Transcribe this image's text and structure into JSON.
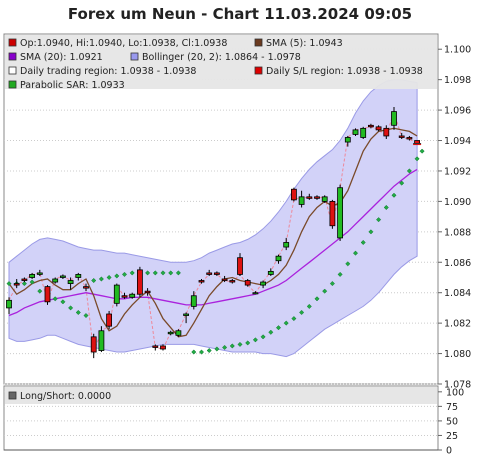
{
  "chart_data": {
    "type": "candlestick",
    "title": "Forex um Neun - Chart 11.03.2024 09:05",
    "main_panel": {
      "ylim": [
        1.078,
        1.101
      ],
      "yticks": [
        1.078,
        1.08,
        1.082,
        1.084,
        1.086,
        1.088,
        1.09,
        1.092,
        1.094,
        1.096,
        1.098,
        1.1
      ],
      "ytick_labels": [
        "1.078",
        "1.080",
        "1.082",
        "1.084",
        "1.086",
        "1.088",
        "1.090",
        "1.092",
        "1.094",
        "1.096",
        "1.098",
        "1.100"
      ],
      "grid": true,
      "legend_position": "top",
      "legend": [
        {
          "label": "Op:1.0940, Hi:1.0940, Lo:1.0938, Cl:1.0938",
          "color": "#cc0000"
        },
        {
          "label": "SMA (5): 1.0943",
          "color": "#6b3a1f"
        },
        {
          "label": "SMA (20): 1.0921",
          "color": "#8800cc"
        },
        {
          "label": "Bollinger (20, 2): 1.0864 - 1.0978",
          "color": "#9999ee"
        },
        {
          "label": "Daily trading region: 1.0938 - 1.0938",
          "color": "#ffffff"
        },
        {
          "label": "Daily S/L region: 1.0938 - 1.0938",
          "color": "#dd0000"
        },
        {
          "label": "Parabolic SAR: 1.0933",
          "color": "#22aa22"
        }
      ],
      "candles": [
        {
          "o": 1.083,
          "h": 1.0837,
          "l": 1.0826,
          "c": 1.0835
        },
        {
          "o": 1.0846,
          "h": 1.0849,
          "l": 1.0843,
          "c": 1.0845
        },
        {
          "o": 1.0849,
          "h": 1.085,
          "l": 1.0847,
          "c": 1.0848
        },
        {
          "o": 1.085,
          "h": 1.0853,
          "l": 1.0849,
          "c": 1.0852
        },
        {
          "o": 1.0852,
          "h": 1.0855,
          "l": 1.0851,
          "c": 1.0853
        },
        {
          "o": 1.0844,
          "h": 1.0845,
          "l": 1.0832,
          "c": 1.0834
        },
        {
          "o": 1.0847,
          "h": 1.085,
          "l": 1.0846,
          "c": 1.0849
        },
        {
          "o": 1.085,
          "h": 1.0852,
          "l": 1.0849,
          "c": 1.0851
        },
        {
          "o": 1.0846,
          "h": 1.085,
          "l": 1.0842,
          "c": 1.0848
        },
        {
          "o": 1.085,
          "h": 1.0853,
          "l": 1.0848,
          "c": 1.0852
        },
        {
          "o": 1.0844,
          "h": 1.0846,
          "l": 1.0841,
          "c": 1.0843
        },
        {
          "o": 1.0811,
          "h": 1.0813,
          "l": 1.0797,
          "c": 1.0801
        },
        {
          "o": 1.0802,
          "h": 1.0818,
          "l": 1.0801,
          "c": 1.0815
        },
        {
          "o": 1.0826,
          "h": 1.0828,
          "l": 1.0816,
          "c": 1.0818
        },
        {
          "o": 1.0833,
          "h": 1.0846,
          "l": 1.0831,
          "c": 1.0845
        },
        {
          "o": 1.0838,
          "h": 1.084,
          "l": 1.0836,
          "c": 1.0837
        },
        {
          "o": 1.0837,
          "h": 1.084,
          "l": 1.0836,
          "c": 1.0839
        },
        {
          "o": 1.0855,
          "h": 1.0857,
          "l": 1.0837,
          "c": 1.0839
        },
        {
          "o": 1.0841,
          "h": 1.0843,
          "l": 1.0838,
          "c": 1.084
        },
        {
          "o": 1.0805,
          "h": 1.0806,
          "l": 1.0802,
          "c": 1.0804
        },
        {
          "o": 1.0805,
          "h": 1.0806,
          "l": 1.0802,
          "c": 1.0803
        },
        {
          "o": 1.0813,
          "h": 1.0815,
          "l": 1.0812,
          "c": 1.0814
        },
        {
          "o": 1.0812,
          "h": 1.0816,
          "l": 1.0811,
          "c": 1.0815
        },
        {
          "o": 1.0825,
          "h": 1.0827,
          "l": 1.082,
          "c": 1.0826
        },
        {
          "o": 1.0831,
          "h": 1.0841,
          "l": 1.0829,
          "c": 1.0838
        },
        {
          "o": 1.0848,
          "h": 1.0849,
          "l": 1.0846,
          "c": 1.0847
        },
        {
          "o": 1.0853,
          "h": 1.0855,
          "l": 1.0851,
          "c": 1.0852
        },
        {
          "o": 1.0853,
          "h": 1.0854,
          "l": 1.0851,
          "c": 1.0852
        },
        {
          "o": 1.0849,
          "h": 1.0851,
          "l": 1.0847,
          "c": 1.0848
        },
        {
          "o": 1.0848,
          "h": 1.0849,
          "l": 1.0846,
          "c": 1.0847
        },
        {
          "o": 1.0863,
          "h": 1.0866,
          "l": 1.0851,
          "c": 1.0852
        },
        {
          "o": 1.0848,
          "h": 1.0849,
          "l": 1.0844,
          "c": 1.0845
        },
        {
          "o": 1.084,
          "h": 1.0841,
          "l": 1.0839,
          "c": 1.084
        },
        {
          "o": 1.0845,
          "h": 1.0848,
          "l": 1.0843,
          "c": 1.0847
        },
        {
          "o": 1.0852,
          "h": 1.0856,
          "l": 1.0851,
          "c": 1.0854
        },
        {
          "o": 1.0861,
          "h": 1.0865,
          "l": 1.0859,
          "c": 1.0864
        },
        {
          "o": 1.087,
          "h": 1.0876,
          "l": 1.0868,
          "c": 1.0873
        },
        {
          "o": 1.0908,
          "h": 1.0909,
          "l": 1.09,
          "c": 1.0901
        },
        {
          "o": 1.0898,
          "h": 1.0907,
          "l": 1.0896,
          "c": 1.0903
        },
        {
          "o": 1.0903,
          "h": 1.0905,
          "l": 1.0901,
          "c": 1.0902
        },
        {
          "o": 1.0903,
          "h": 1.0904,
          "l": 1.0901,
          "c": 1.0902
        },
        {
          "o": 1.09,
          "h": 1.0904,
          "l": 1.0899,
          "c": 1.0903
        },
        {
          "o": 1.09,
          "h": 1.0901,
          "l": 1.0882,
          "c": 1.0884
        },
        {
          "o": 1.0876,
          "h": 1.0911,
          "l": 1.0874,
          "c": 1.0909
        },
        {
          "o": 1.0939,
          "h": 1.0943,
          "l": 1.0936,
          "c": 1.0942
        },
        {
          "o": 1.0944,
          "h": 1.0948,
          "l": 1.0943,
          "c": 1.0947
        },
        {
          "o": 1.0942,
          "h": 1.0949,
          "l": 1.0941,
          "c": 1.0948
        },
        {
          "o": 1.095,
          "h": 1.0951,
          "l": 1.0948,
          "c": 1.0949
        },
        {
          "o": 1.0949,
          "h": 1.095,
          "l": 1.0946,
          "c": 1.0947
        },
        {
          "o": 1.0948,
          "h": 1.095,
          "l": 1.0941,
          "c": 1.0943
        },
        {
          "o": 1.095,
          "h": 1.0962,
          "l": 1.0947,
          "c": 1.0959
        },
        {
          "o": 1.0943,
          "h": 1.0945,
          "l": 1.0941,
          "c": 1.0942
        },
        {
          "o": 1.0942,
          "h": 1.0943,
          "l": 1.094,
          "c": 1.0941
        },
        {
          "o": 1.094,
          "h": 1.094,
          "l": 1.0938,
          "c": 1.0938
        }
      ],
      "sma5": [
        1.0846,
        1.0839,
        1.0842,
        1.0846,
        1.0848,
        1.0849,
        1.0845,
        1.0842,
        1.0842,
        1.0846,
        1.0849,
        1.0838,
        1.0823,
        1.0815,
        1.0818,
        1.0826,
        1.0832,
        1.0837,
        1.0841,
        1.0833,
        1.0823,
        1.0817,
        1.0811,
        1.0812,
        1.082,
        1.0829,
        1.0838,
        1.0844,
        1.0849,
        1.085,
        1.0848,
        1.0847,
        1.0846,
        1.0845,
        1.0848,
        1.0852,
        1.0858,
        1.0868,
        1.088,
        1.089,
        1.0896,
        1.09,
        1.0897,
        1.0899,
        1.0907,
        1.092,
        1.0933,
        1.0941,
        1.0946,
        1.0947,
        1.0948,
        1.0947,
        1.0946,
        1.0943
      ],
      "sma20": [
        1.0825,
        1.0827,
        1.083,
        1.0832,
        1.0834,
        1.0835,
        1.0836,
        1.0837,
        1.0838,
        1.0839,
        1.084,
        1.0839,
        1.0838,
        1.0837,
        1.0836,
        1.0836,
        1.0837,
        1.0837,
        1.0837,
        1.0836,
        1.0835,
        1.0834,
        1.0833,
        1.0832,
        1.0832,
        1.0832,
        1.0833,
        1.0834,
        1.0835,
        1.0836,
        1.0837,
        1.0838,
        1.0839,
        1.0841,
        1.0843,
        1.0845,
        1.0848,
        1.0852,
        1.0856,
        1.086,
        1.0864,
        1.0868,
        1.0872,
        1.0876,
        1.088,
        1.0885,
        1.089,
        1.0895,
        1.09,
        1.0905,
        1.091,
        1.0914,
        1.0918,
        1.0921
      ],
      "bb_upper": [
        1.086,
        1.0864,
        1.0868,
        1.0872,
        1.0875,
        1.0876,
        1.0875,
        1.0874,
        1.0872,
        1.087,
        1.0869,
        1.0868,
        1.0868,
        1.0867,
        1.0866,
        1.0866,
        1.0865,
        1.0864,
        1.0863,
        1.0862,
        1.0861,
        1.086,
        1.086,
        1.086,
        1.0861,
        1.0863,
        1.0866,
        1.0868,
        1.087,
        1.0872,
        1.0873,
        1.0875,
        1.0878,
        1.0882,
        1.0887,
        1.0893,
        1.09,
        1.0908,
        1.0915,
        1.0921,
        1.0926,
        1.093,
        1.0934,
        1.094,
        1.0948,
        1.0958,
        1.0966,
        1.0972,
        1.0976,
        1.0979,
        1.098,
        1.098,
        1.0979,
        1.0978
      ],
      "bb_lower": [
        1.081,
        1.0808,
        1.0808,
        1.0809,
        1.081,
        1.0812,
        1.0812,
        1.081,
        1.0808,
        1.0806,
        1.0805,
        1.0804,
        1.0803,
        1.0802,
        1.0801,
        1.0801,
        1.0802,
        1.0803,
        1.0804,
        1.0805,
        1.0806,
        1.0806,
        1.0806,
        1.0806,
        1.0806,
        1.0805,
        1.0804,
        1.0803,
        1.0802,
        1.0801,
        1.0801,
        1.0801,
        1.0801,
        1.08,
        1.08,
        1.0799,
        1.0798,
        1.08,
        1.0804,
        1.0808,
        1.0812,
        1.0816,
        1.0819,
        1.0822,
        1.0825,
        1.0828,
        1.0831,
        1.0835,
        1.084,
        1.0846,
        1.0852,
        1.0857,
        1.0861,
        1.0864
      ],
      "sar": [
        1.0846,
        1.0846,
        1.0846,
        1.0847,
        1.0841,
        1.0838,
        1.0836,
        1.0834,
        1.083,
        1.0827,
        1.0825,
        1.0848,
        1.0849,
        1.085,
        1.0851,
        1.0852,
        1.0853,
        1.0853,
        1.0853,
        1.0853,
        1.0853,
        1.0853,
        1.0853,
        null,
        1.0801,
        1.0801,
        1.0802,
        1.0803,
        1.0804,
        1.0805,
        1.0806,
        1.0807,
        1.0809,
        1.0811,
        1.0814,
        1.0817,
        1.082,
        1.0823,
        1.0827,
        1.0831,
        1.0836,
        1.0841,
        1.0846,
        1.0852,
        1.0859,
        1.0866,
        1.0873,
        1.088,
        1.0888,
        1.0896,
        1.0904,
        1.0912,
        1.092,
        1.0928
      ],
      "sar_after_last": 1.0933,
      "daily_trading_region": [
        1.0938,
        1.0938
      ],
      "daily_sl_region": [
        1.0938,
        1.0938
      ]
    },
    "sub_panel": {
      "legend": [
        {
          "label": "Long/Short: 0.0000",
          "color": "#666666"
        }
      ],
      "ylim": [
        0,
        110
      ],
      "yticks": [
        0,
        25,
        50,
        75,
        100
      ],
      "ytick_labels": [
        "0",
        "25",
        "50",
        "75",
        "100"
      ],
      "value": 0.0
    }
  }
}
